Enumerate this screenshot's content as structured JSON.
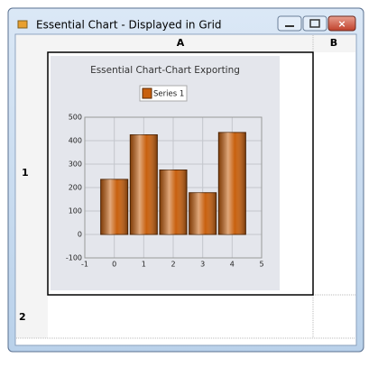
{
  "window": {
    "title": "Essential Chart - Displayed in Grid"
  },
  "grid": {
    "columns": [
      "A",
      "B"
    ],
    "rows": [
      "1",
      "2"
    ]
  },
  "chart_data": {
    "type": "bar",
    "title": "Essential Chart-Chart Exporting",
    "x": [
      0,
      1,
      2,
      3,
      4
    ],
    "series": [
      {
        "name": "Series 1",
        "color": "#c8600e",
        "values": [
          235,
          425,
          275,
          178,
          435
        ]
      }
    ],
    "xlim": [
      -1,
      5
    ],
    "xticks": [
      -1,
      0,
      1,
      2,
      3,
      4,
      5
    ],
    "ylim": [
      -100,
      500
    ],
    "yticks": [
      -100,
      0,
      100,
      200,
      300,
      400,
      500
    ],
    "grid": true,
    "legend": "top"
  }
}
